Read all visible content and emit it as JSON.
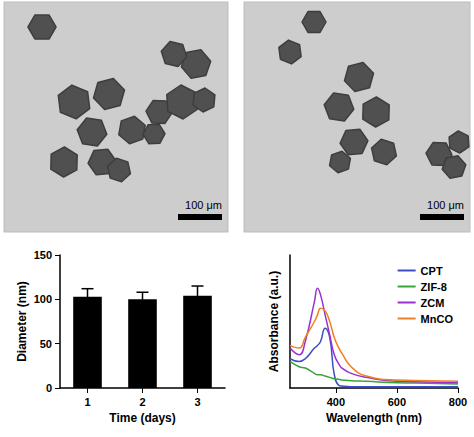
{
  "images": [
    {
      "scale_bar": "100 μm"
    },
    {
      "scale_bar": "100 μm"
    }
  ],
  "chart_data": [
    {
      "type": "bar",
      "categories": [
        "1",
        "2",
        "3"
      ],
      "values": [
        103,
        100,
        104
      ],
      "errors": [
        9,
        8,
        11
      ],
      "color": "#000000",
      "x_label": "Time (days)",
      "y_label": "Diameter (nm)",
      "ylim": [
        0,
        150
      ],
      "yticks": [
        0,
        50,
        100,
        150
      ],
      "grid": false
    },
    {
      "type": "line",
      "x_label": "Wavelength (nm)",
      "y_label": "Absorbance (a.u.)",
      "x": [
        250,
        280,
        300,
        330,
        340,
        350,
        365,
        380,
        395,
        410,
        420,
        450,
        500,
        600,
        700,
        800
      ],
      "series": [
        {
          "name": "CPT",
          "color": "#3a4fc4",
          "values": [
            0.22,
            0.2,
            0.22,
            0.3,
            0.32,
            0.35,
            0.45,
            0.38,
            0.1,
            0.02,
            0.015,
            0.01,
            0.01,
            0.01,
            0.01,
            0.01
          ]
        },
        {
          "name": "ZIF-8",
          "color": "#3aa33a",
          "values": [
            0.2,
            0.16,
            0.15,
            0.11,
            0.1,
            0.1,
            0.09,
            0.08,
            0.07,
            0.065,
            0.06,
            0.055,
            0.05,
            0.04,
            0.035,
            0.03
          ]
        },
        {
          "name": "ZCM",
          "color": "#9b30d0",
          "values": [
            0.3,
            0.25,
            0.35,
            0.65,
            0.75,
            0.7,
            0.55,
            0.4,
            0.25,
            0.18,
            0.15,
            0.11,
            0.08,
            0.05,
            0.045,
            0.04
          ]
        },
        {
          "name": "MnCO",
          "color": "#f08020",
          "values": [
            0.32,
            0.3,
            0.38,
            0.5,
            0.55,
            0.6,
            0.58,
            0.5,
            0.38,
            0.3,
            0.26,
            0.16,
            0.09,
            0.06,
            0.055,
            0.05
          ]
        }
      ],
      "xlim": [
        250,
        800
      ],
      "xticks": [
        400,
        600,
        800
      ],
      "ylim": [
        0,
        1
      ],
      "tick_labels": "x",
      "legend": "top-right",
      "grid": false
    }
  ]
}
